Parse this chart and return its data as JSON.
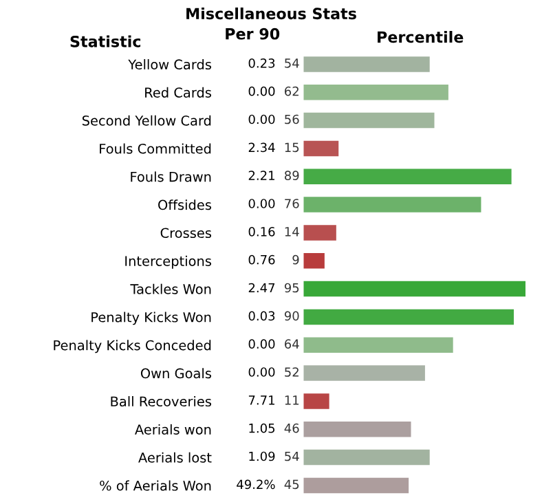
{
  "chart_data": {
    "type": "bar",
    "orientation": "horizontal",
    "title": "Miscellaneous Stats",
    "xlabel": "Percentile",
    "ylabel": "Statistic",
    "categories": [
      "Yellow Cards",
      "Red Cards",
      "Second Yellow Card",
      "Fouls Committed",
      "Fouls Drawn",
      "Offsides",
      "Crosses",
      "Interceptions",
      "Tackles Won",
      "Penalty Kicks Won",
      "Penalty Kicks Conceded",
      "Own Goals",
      "Ball Recoveries",
      "Aerials won",
      "Aerials lost",
      "% of Aerials Won"
    ],
    "values": [
      54,
      62,
      56,
      15,
      89,
      76,
      14,
      9,
      95,
      90,
      64,
      52,
      11,
      46,
      54,
      45
    ],
    "colors": [
      "#a2b3a0",
      "#93bb8e",
      "#9fb69c",
      "#b85454",
      "#46ab46",
      "#6cb26a",
      "#b84f4f",
      "#b83c3c",
      "#38a838",
      "#42aa42",
      "#8fbb8b",
      "#a8b2a6",
      "#b84545",
      "#ab9f9f",
      "#a2b3a0",
      "#ad9d9d"
    ],
    "data_labels": true,
    "tick_labels": "y",
    "grid": false,
    "annotations": [
      "Per 90",
      "0.23",
      "0.00",
      "0.00",
      "2.34",
      "2.21",
      "0.00",
      "0.16",
      "0.76",
      "2.47",
      "0.03",
      "0.00",
      "0.00",
      "7.71",
      "1.05",
      "1.09",
      "49.2%"
    ]
  }
}
